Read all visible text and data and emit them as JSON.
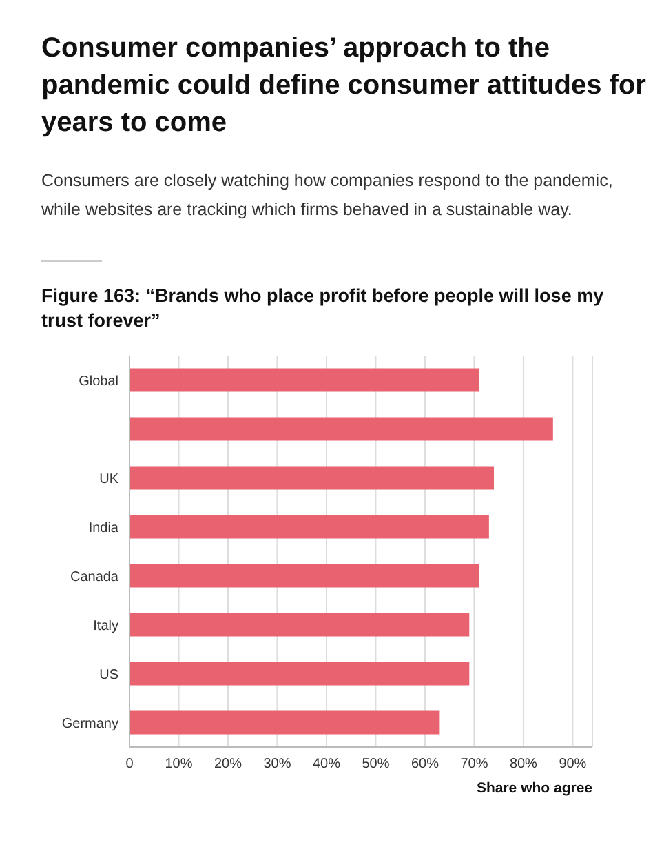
{
  "chart_data": {
    "type": "bar",
    "orientation": "horizontal",
    "title": "Consumer companies’ approach to the pandemic could define consumer attitudes for years to come",
    "subtitle": "Consumers are closely watching how companies respond to the pandemic, while websites are tracking which firms behaved in a sustainable way.",
    "annotations": [
      "Figure 163: “Brands who place profit before people will lose my trust forever”"
    ],
    "xlabel": "Share who agree",
    "categories": [
      "Global",
      null,
      "UK",
      "India",
      "Canada",
      "Italy",
      "US",
      "Germany"
    ],
    "values": [
      71,
      86,
      74,
      73,
      71,
      69,
      69,
      63
    ],
    "color": "#e8626f",
    "xlim": [
      0,
      94
    ],
    "xticks": [
      0,
      {
        "value": 10,
        "label": "10%"
      },
      {
        "value": 20,
        "label": "20%"
      },
      {
        "value": 30,
        "label": "30%"
      },
      {
        "value": 40,
        "label": "40%"
      },
      {
        "value": 50,
        "label": "50%"
      },
      {
        "value": 60,
        "label": "60%"
      },
      {
        "value": 70,
        "label": "70%"
      },
      {
        "value": 80,
        "label": "80%"
      },
      {
        "value": 90,
        "label": "90%"
      }
    ],
    "grid": "x"
  }
}
